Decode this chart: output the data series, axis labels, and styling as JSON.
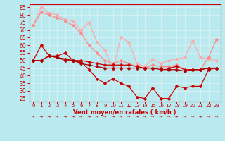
{
  "xlabel": "Vent moyen/en rafales ( km/h )",
  "background_color": "#b8eaf0",
  "grid_color": "#d8f0f0",
  "tick_color": "#cc0000",
  "label_color": "#cc0000",
  "x_ticks": [
    0,
    1,
    2,
    3,
    4,
    5,
    6,
    7,
    8,
    9,
    10,
    11,
    12,
    13,
    14,
    15,
    16,
    17,
    18,
    19,
    20,
    21,
    22,
    23
  ],
  "ylim": [
    23,
    87
  ],
  "yticks": [
    25,
    30,
    35,
    40,
    45,
    50,
    55,
    60,
    65,
    70,
    75,
    80,
    85
  ],
  "series": [
    {
      "color": "#ffaaaa",
      "linewidth": 0.9,
      "markersize": 2.5,
      "data": [
        73,
        85,
        81,
        80,
        77,
        76,
        70,
        75,
        62,
        57,
        44,
        65,
        62,
        48,
        46,
        51,
        48,
        50,
        51,
        52,
        63,
        52,
        51,
        50
      ]
    },
    {
      "color": "#ff8888",
      "linewidth": 0.9,
      "markersize": 2.5,
      "data": [
        73,
        82,
        80,
        78,
        76,
        73,
        68,
        60,
        55,
        50,
        48,
        50,
        48,
        46,
        45,
        47,
        46,
        46,
        47,
        44,
        44,
        44,
        52,
        64
      ]
    },
    {
      "color": "#cc0000",
      "linewidth": 0.9,
      "markersize": 2.5,
      "data": [
        50,
        60,
        53,
        53,
        55,
        50,
        49,
        44,
        38,
        35,
        38,
        35,
        33,
        26,
        25,
        32,
        25,
        25,
        33,
        32,
        33,
        33,
        44,
        45
      ]
    },
    {
      "color": "#cc0000",
      "linewidth": 0.9,
      "markersize": 2.5,
      "data": [
        50,
        50,
        53,
        52,
        50,
        50,
        50,
        49,
        48,
        47,
        47,
        47,
        47,
        46,
        45,
        45,
        45,
        45,
        46,
        44,
        44,
        44,
        45,
        45
      ]
    },
    {
      "color": "#aa0000",
      "linewidth": 0.9,
      "markersize": 2.5,
      "data": [
        50,
        50,
        53,
        52,
        51,
        50,
        48,
        47,
        46,
        45,
        45,
        45,
        45,
        45,
        45,
        45,
        44,
        44,
        44,
        43,
        44,
        44,
        45,
        45
      ]
    }
  ]
}
